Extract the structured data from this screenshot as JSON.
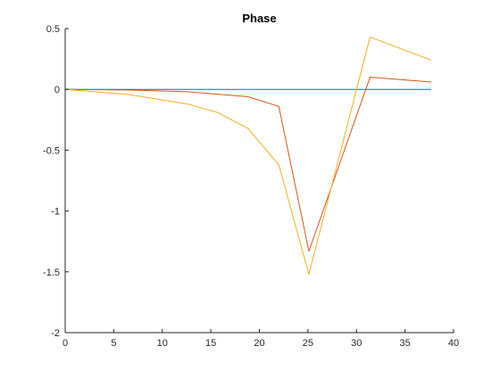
{
  "chart_data": {
    "type": "line",
    "title": "Phase",
    "xlabel": "",
    "ylabel": "",
    "xlim": [
      0,
      40
    ],
    "ylim": [
      -2,
      0.5
    ],
    "xticks": [
      0,
      5,
      10,
      15,
      20,
      25,
      30,
      35,
      40
    ],
    "yticks": [
      -2,
      -1.5,
      -1,
      -0.5,
      0,
      0.5
    ],
    "xtick_labels": [
      "0",
      "5",
      "10",
      "15",
      "20",
      "25",
      "30",
      "35",
      "40"
    ],
    "ytick_labels": [
      "-2",
      "-1.5",
      "-1",
      "-0.5",
      "0",
      "0.5"
    ],
    "grid": false,
    "legend": null,
    "series": [
      {
        "color": "#0072BD",
        "x": [
          0,
          37.7
        ],
        "y": [
          0,
          0
        ]
      },
      {
        "color": "#D95319",
        "x": [
          0,
          6.3,
          12.6,
          18.8,
          22.0,
          25.1,
          31.4,
          37.7
        ],
        "y": [
          0,
          -0.005,
          -0.02,
          -0.06,
          -0.14,
          -1.33,
          0.1,
          0.06
        ]
      },
      {
        "color": "#EDB120",
        "x": [
          0,
          6.3,
          12.6,
          15.7,
          18.8,
          22.0,
          25.1,
          31.4,
          37.7
        ],
        "y": [
          0,
          -0.04,
          -0.12,
          -0.19,
          -0.32,
          -0.62,
          -1.52,
          0.43,
          0.24
        ]
      }
    ]
  }
}
